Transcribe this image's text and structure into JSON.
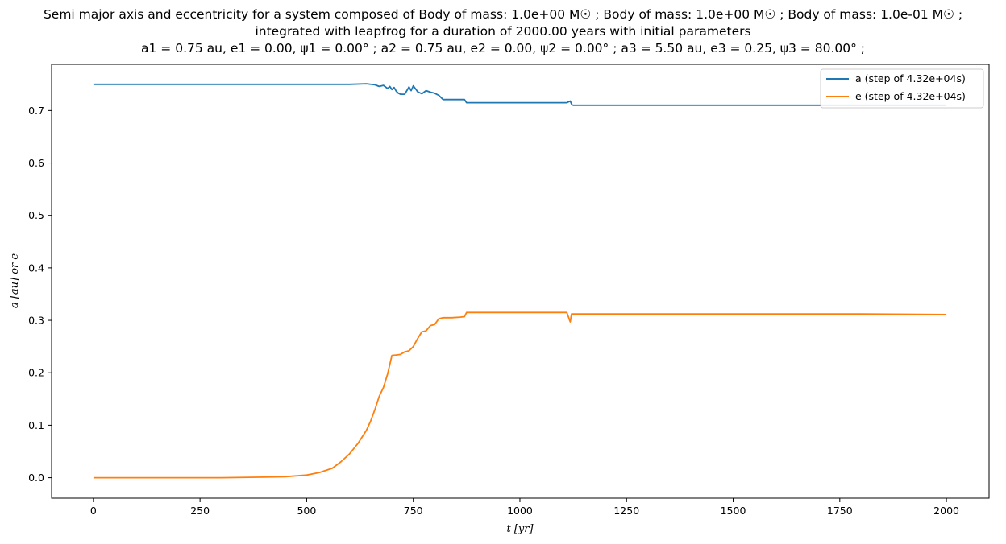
{
  "chart_data": {
    "type": "line",
    "title": [
      "Semi major axis and eccentricity for a system composed of Body of mass: 1.0e+00 M☉ ; Body of mass: 1.0e+00 M☉ ; Body of mass: 1.0e-01 M☉ ;",
      "integrated with leapfrog for a duration of 2000.00 years with initial parameters",
      "a1 = 0.75 au, e1 = 0.00, ψ1 = 0.00° ; a2 = 0.75 au, e2 = 0.00, ψ2 = 0.00° ; a3 = 5.50 au, e3 = 0.25, ψ3 = 80.00° ;"
    ],
    "xlabel": "t [yr]",
    "ylabel": "a [au] or e",
    "xlim": [
      -98,
      2100
    ],
    "ylim": [
      -0.039,
      0.788
    ],
    "xticks": [
      0,
      250,
      500,
      750,
      1000,
      1250,
      1500,
      1750,
      2000
    ],
    "yticks": [
      0.0,
      0.1,
      0.2,
      0.3,
      0.4,
      0.5,
      0.6,
      0.7
    ],
    "legend_position": "top-right",
    "series": [
      {
        "name": "a (step of 4.32e+04s)",
        "color": "#1f77b4",
        "x": [
          0,
          100,
          200,
          300,
          400,
          500,
          600,
          640,
          660,
          670,
          680,
          690,
          695,
          700,
          705,
          710,
          715,
          720,
          730,
          740,
          745,
          750,
          755,
          760,
          770,
          780,
          790,
          800,
          810,
          820,
          840,
          860,
          870,
          875,
          900,
          1000,
          1110,
          1118,
          1122,
          1125,
          1200,
          1400,
          1600,
          1800,
          2000
        ],
        "y": [
          0.75,
          0.75,
          0.75,
          0.75,
          0.75,
          0.75,
          0.75,
          0.751,
          0.749,
          0.746,
          0.748,
          0.742,
          0.746,
          0.74,
          0.744,
          0.737,
          0.733,
          0.731,
          0.731,
          0.745,
          0.738,
          0.747,
          0.742,
          0.736,
          0.732,
          0.738,
          0.735,
          0.733,
          0.729,
          0.721,
          0.721,
          0.721,
          0.721,
          0.715,
          0.715,
          0.715,
          0.715,
          0.718,
          0.711,
          0.71,
          0.71,
          0.71,
          0.71,
          0.71,
          0.71
        ]
      },
      {
        "name": "e (step of 4.32e+04s)",
        "color": "#ff7f0e",
        "x": [
          0,
          100,
          200,
          300,
          400,
          450,
          500,
          530,
          560,
          580,
          600,
          620,
          640,
          650,
          660,
          670,
          680,
          690,
          700,
          710,
          720,
          730,
          740,
          750,
          760,
          770,
          780,
          790,
          800,
          810,
          820,
          840,
          860,
          870,
          875,
          900,
          1000,
          1110,
          1118,
          1121,
          1125,
          1200,
          1400,
          1600,
          1800,
          2000
        ],
        "y": [
          0.0,
          0.0,
          0.0,
          0.0,
          0.001,
          0.002,
          0.005,
          0.01,
          0.018,
          0.03,
          0.045,
          0.065,
          0.09,
          0.108,
          0.13,
          0.155,
          0.172,
          0.198,
          0.233,
          0.234,
          0.235,
          0.24,
          0.242,
          0.25,
          0.265,
          0.278,
          0.28,
          0.29,
          0.292,
          0.303,
          0.305,
          0.305,
          0.306,
          0.307,
          0.315,
          0.315,
          0.315,
          0.315,
          0.297,
          0.312,
          0.312,
          0.312,
          0.312,
          0.312,
          0.312,
          0.311
        ]
      }
    ]
  }
}
